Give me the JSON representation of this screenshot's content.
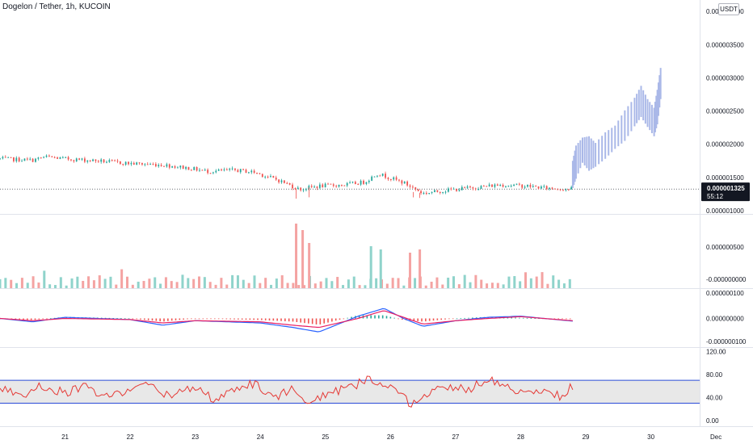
{
  "header": {
    "symbol_title": "Dogelon / Tether, 1h, KUCOIN",
    "currency_button": "USDT"
  },
  "price_tag": {
    "price": "0.000001325",
    "countdown": "55:12",
    "color": "#131722"
  },
  "colors": {
    "up": "#26a69a",
    "down": "#ef5350",
    "projection": "#aab8e8",
    "macd_line": "#2962ff",
    "signal_line": "#e91e63",
    "rsi_line": "#e53935",
    "rsi_band_line": "#2a4bd7",
    "rsi_band_fill": "#e8e8e8"
  },
  "chart_data": [
    {
      "type": "candlestick",
      "panel": "price",
      "y_tick_labels": [
        "0.000004000",
        "0.000003500",
        "0.000003000",
        "0.000002500",
        "0.000002000",
        "0.000001500",
        "0.000001000"
      ],
      "ylim": [
        9.5e-07,
        4.1e-06
      ],
      "x_tick_labels": [
        "21",
        "22",
        "23",
        "24",
        "25",
        "26",
        "27",
        "28",
        "29",
        "30",
        "Dec"
      ],
      "last_price": 1.325e-06,
      "ohlc_note": "historical hourly candles from ~20 Nov to ~28.8 Nov, followed by a projected (idea) bar series rising to ~0.00000315",
      "anchors_close": [
        [
          20.0,
          1.78e-06
        ],
        [
          20.5,
          1.76e-06
        ],
        [
          20.7,
          1.81e-06
        ],
        [
          21.0,
          1.78e-06
        ],
        [
          21.5,
          1.75e-06
        ],
        [
          22.0,
          1.71e-06
        ],
        [
          22.5,
          1.69e-06
        ],
        [
          22.9,
          1.64e-06
        ],
        [
          23.2,
          1.59e-06
        ],
        [
          23.6,
          1.61e-06
        ],
        [
          23.9,
          1.58e-06
        ],
        [
          24.3,
          1.45e-06
        ],
        [
          24.6,
          1.32e-06
        ],
        [
          24.9,
          1.37e-06
        ],
        [
          25.3,
          1.39e-06
        ],
        [
          25.6,
          1.43e-06
        ],
        [
          25.8,
          1.56e-06
        ],
        [
          26.2,
          1.42e-06
        ],
        [
          26.5,
          1.26e-06
        ],
        [
          26.9,
          1.31e-06
        ],
        [
          27.3,
          1.35e-06
        ],
        [
          27.7,
          1.39e-06
        ],
        [
          28.1,
          1.37e-06
        ],
        [
          28.4,
          1.34e-06
        ],
        [
          28.75,
          1.325e-06
        ]
      ],
      "projection_bars": [
        [
          28.8,
          1.34e-06,
          1.75e-06
        ],
        [
          28.85,
          1.48e-06,
          1.98e-06
        ],
        [
          28.95,
          1.72e-06,
          2.1e-06
        ],
        [
          29.05,
          1.6e-06,
          2.12e-06
        ],
        [
          29.15,
          1.66e-06,
          2.02e-06
        ],
        [
          29.3,
          1.78e-06,
          2.18e-06
        ],
        [
          29.45,
          1.93e-06,
          2.28e-06
        ],
        [
          29.6,
          2.05e-06,
          2.51e-06
        ],
        [
          29.75,
          2.27e-06,
          2.7e-06
        ],
        [
          29.85,
          2.41e-06,
          2.88e-06
        ],
        [
          29.95,
          2.26e-06,
          2.68e-06
        ],
        [
          30.05,
          2.12e-06,
          2.55e-06
        ],
        [
          30.1,
          2.3e-06,
          2.82e-06
        ],
        [
          30.15,
          2.68e-06,
          3.15e-06
        ]
      ]
    },
    {
      "type": "bar",
      "panel": "volume",
      "y_tick_labels": [
        "0.000000500",
        "-0.000000000"
      ],
      "ylim": [
        0,
        1.1e-06
      ],
      "spikes": [
        [
          24.55,
          1e-06
        ],
        [
          24.65,
          9e-07
        ],
        [
          24.75,
          7e-07
        ],
        [
          25.7,
          6.5e-07
        ],
        [
          25.85,
          6e-07
        ],
        [
          26.3,
          5.5e-07
        ],
        [
          26.45,
          6e-07
        ]
      ]
    },
    {
      "type": "line",
      "panel": "macd",
      "y_tick_labels": [
        "0.000000100",
        "0.000000000",
        "-0.000000100"
      ],
      "ylim": [
        -1.2e-07,
        1.2e-07
      ],
      "series": [
        {
          "values": [
            [
              20,
              0.0
            ],
            [
              20.5,
              -1.5e-08
            ],
            [
              21,
              5e-09
            ],
            [
              22,
              -5e-09
            ],
            [
              22.5,
              -3e-08
            ],
            [
              23,
              -1e-08
            ],
            [
              24,
              -2e-08
            ],
            [
              24.5,
              -4e-08
            ],
            [
              24.9,
              -6e-08
            ],
            [
              25.5,
              1e-08
            ],
            [
              25.9,
              4.5e-08
            ],
            [
              26.2,
              0.0
            ],
            [
              26.5,
              -3.5e-08
            ],
            [
              27,
              -1e-08
            ],
            [
              27.5,
              5e-09
            ],
            [
              28,
              1e-08
            ],
            [
              28.8,
              -1.2e-08
            ]
          ]
        },
        {
          "values": [
            [
              20,
              0.0
            ],
            [
              20.5,
              -1e-08
            ],
            [
              21,
              0.0
            ],
            [
              22,
              -5e-09
            ],
            [
              22.5,
              -2e-08
            ],
            [
              23,
              -1e-08
            ],
            [
              24,
              -1.5e-08
            ],
            [
              24.5,
              -3e-08
            ],
            [
              24.9,
              -4e-08
            ],
            [
              25.5,
              0.0
            ],
            [
              25.9,
              3.5e-08
            ],
            [
              26.2,
              5e-09
            ],
            [
              26.5,
              -2.5e-08
            ],
            [
              27,
              -1e-08
            ],
            [
              27.5,
              0.0
            ],
            [
              28,
              8e-09
            ],
            [
              28.8,
              -1e-08
            ]
          ]
        }
      ]
    },
    {
      "type": "line",
      "panel": "rsi",
      "y_tick_labels": [
        "120.00",
        "80.00",
        "40.00",
        "0.00"
      ],
      "ylim": [
        -10,
        125
      ],
      "band": [
        30,
        70
      ],
      "series": [
        {
          "values": [
            [
              20,
              55
            ],
            [
              20.4,
              45
            ],
            [
              20.6,
              62
            ],
            [
              21,
              48
            ],
            [
              21.3,
              60
            ],
            [
              21.6,
              40
            ],
            [
              22,
              55
            ],
            [
              22.3,
              62
            ],
            [
              22.6,
              42
            ],
            [
              23,
              58
            ],
            [
              23.3,
              35
            ],
            [
              23.6,
              52
            ],
            [
              23.9,
              65
            ],
            [
              24.2,
              40
            ],
            [
              24.5,
              55
            ],
            [
              24.8,
              30
            ],
            [
              25.1,
              50
            ],
            [
              25.4,
              58
            ],
            [
              25.7,
              75
            ],
            [
              26,
              55
            ],
            [
              26.3,
              30
            ],
            [
              26.6,
              48
            ],
            [
              26.9,
              60
            ],
            [
              27.2,
              55
            ],
            [
              27.5,
              72
            ],
            [
              27.8,
              60
            ],
            [
              28.1,
              45
            ],
            [
              28.4,
              50
            ],
            [
              28.6,
              42
            ],
            [
              28.8,
              60
            ]
          ]
        }
      ]
    }
  ]
}
